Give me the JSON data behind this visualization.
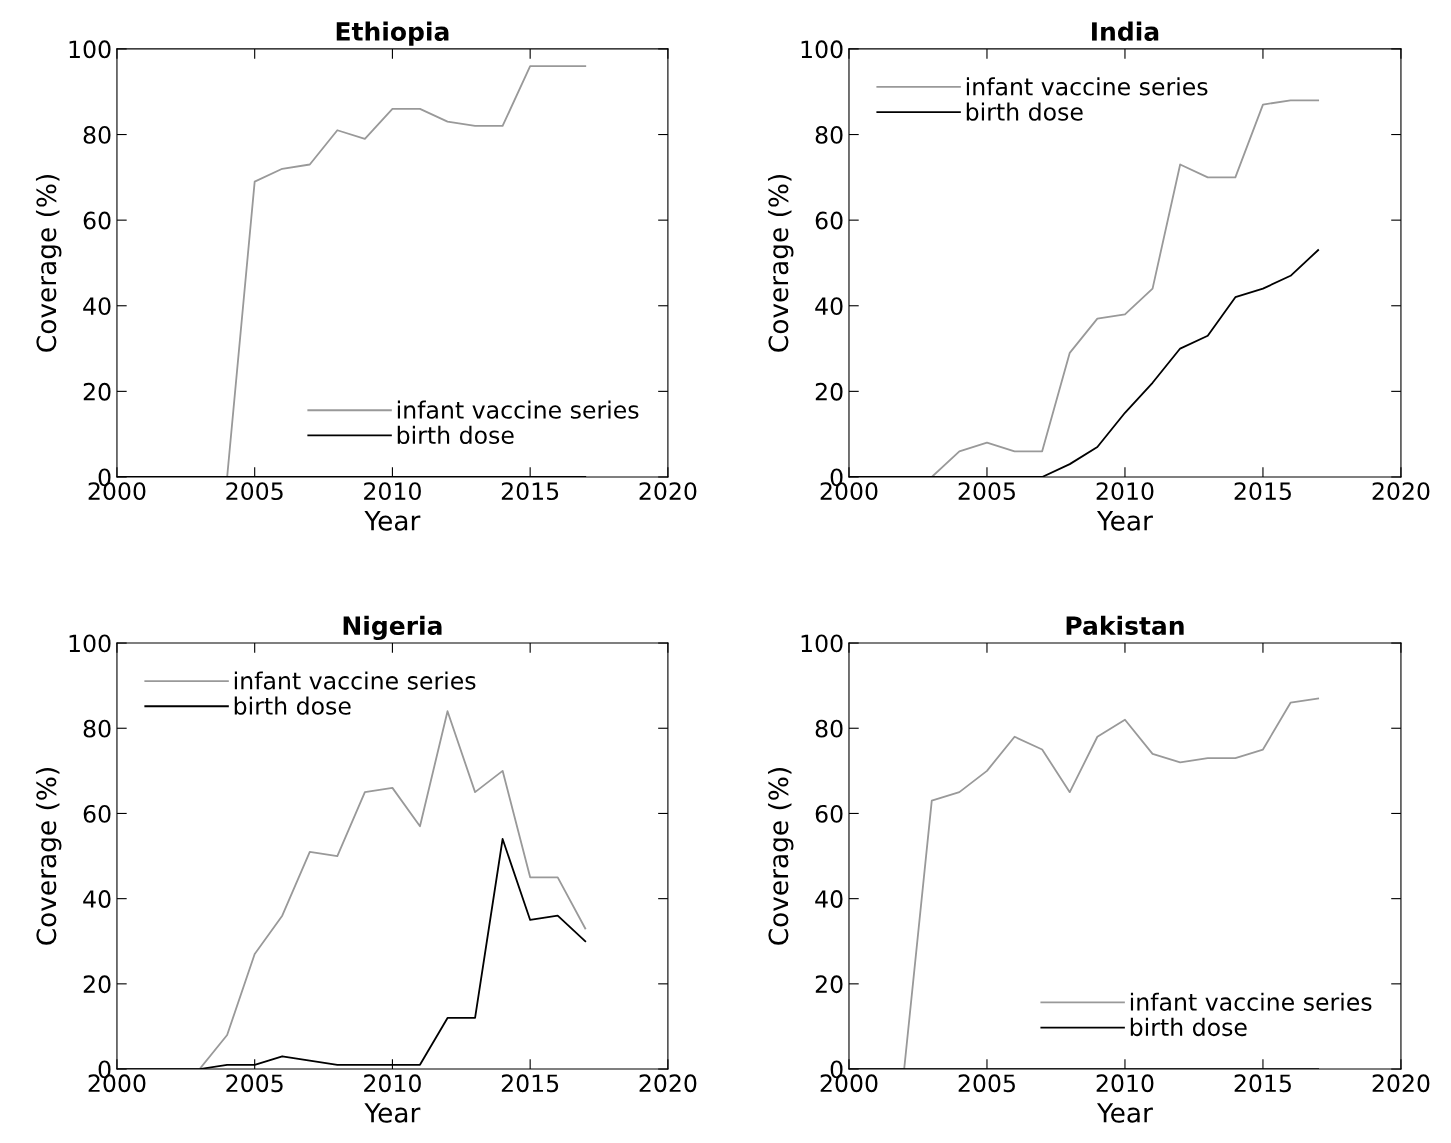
{
  "chart_data": [
    {
      "type": "line",
      "title": "Ethiopia",
      "xlabel": "Year",
      "ylabel": "Coverage (%)",
      "xlim": [
        2000,
        2020
      ],
      "ylim": [
        0,
        100
      ],
      "xticks": [
        2000,
        2005,
        2010,
        2015,
        2020
      ],
      "yticks": [
        0,
        20,
        40,
        60,
        80,
        100
      ],
      "legend": "bottom right",
      "grid": false,
      "x": [
        2000,
        2001,
        2002,
        2003,
        2004,
        2005,
        2006,
        2007,
        2008,
        2009,
        2010,
        2011,
        2012,
        2013,
        2014,
        2015,
        2016,
        2017
      ],
      "series": [
        {
          "name": "infant vaccine series",
          "color": "#999999",
          "values": [
            0,
            0,
            0,
            0,
            0,
            69,
            72,
            73,
            81,
            79,
            86,
            86,
            83,
            82,
            82,
            96,
            96,
            96
          ]
        },
        {
          "name": "birth dose",
          "color": "#000000",
          "values": [
            0,
            0,
            0,
            0,
            0,
            0,
            0,
            0,
            0,
            0,
            0,
            0,
            0,
            0,
            0,
            0,
            0,
            0
          ]
        }
      ]
    },
    {
      "type": "line",
      "title": "India",
      "xlabel": "Year",
      "ylabel": "Coverage (%)",
      "xlim": [
        2000,
        2020
      ],
      "ylim": [
        0,
        100
      ],
      "xticks": [
        2000,
        2005,
        2010,
        2015,
        2020
      ],
      "yticks": [
        0,
        20,
        40,
        60,
        80,
        100
      ],
      "legend": "top left",
      "grid": false,
      "x": [
        2000,
        2001,
        2002,
        2003,
        2004,
        2005,
        2006,
        2007,
        2008,
        2009,
        2010,
        2011,
        2012,
        2013,
        2014,
        2015,
        2016,
        2017
      ],
      "series": [
        {
          "name": "infant vaccine series",
          "color": "#999999",
          "values": [
            0,
            0,
            0,
            0,
            6,
            8,
            6,
            6,
            29,
            37,
            38,
            44,
            73,
            70,
            70,
            87,
            88,
            88
          ]
        },
        {
          "name": "birth dose",
          "color": "#000000",
          "values": [
            0,
            0,
            0,
            0,
            0,
            0,
            0,
            0,
            3,
            7,
            15,
            22,
            30,
            33,
            42,
            44,
            47,
            53
          ]
        }
      ]
    },
    {
      "type": "line",
      "title": "Nigeria",
      "xlabel": "Year",
      "ylabel": "Coverage (%)",
      "xlim": [
        2000,
        2020
      ],
      "ylim": [
        0,
        100
      ],
      "xticks": [
        2000,
        2005,
        2010,
        2015,
        2020
      ],
      "yticks": [
        0,
        20,
        40,
        60,
        80,
        100
      ],
      "legend": "top left",
      "grid": false,
      "x": [
        2000,
        2001,
        2002,
        2003,
        2004,
        2005,
        2006,
        2007,
        2008,
        2009,
        2010,
        2011,
        2012,
        2013,
        2014,
        2015,
        2016,
        2017
      ],
      "series": [
        {
          "name": "infant vaccine series",
          "color": "#999999",
          "values": [
            0,
            0,
            0,
            0,
            8,
            27,
            36,
            51,
            50,
            65,
            66,
            57,
            84,
            65,
            70,
            45,
            45,
            33
          ]
        },
        {
          "name": "birth dose",
          "color": "#000000",
          "values": [
            0,
            0,
            0,
            0,
            1,
            1,
            3,
            2,
            1,
            1,
            1,
            1,
            12,
            12,
            54,
            35,
            36,
            30
          ]
        }
      ]
    },
    {
      "type": "line",
      "title": "Pakistan",
      "xlabel": "Year",
      "ylabel": "Coverage (%)",
      "xlim": [
        2000,
        2020
      ],
      "ylim": [
        0,
        100
      ],
      "xticks": [
        2000,
        2005,
        2010,
        2015,
        2020
      ],
      "yticks": [
        0,
        20,
        40,
        60,
        80,
        100
      ],
      "legend": "bottom right",
      "grid": false,
      "x": [
        2000,
        2001,
        2002,
        2003,
        2004,
        2005,
        2006,
        2007,
        2008,
        2009,
        2010,
        2011,
        2012,
        2013,
        2014,
        2015,
        2016,
        2017
      ],
      "series": [
        {
          "name": "infant vaccine series",
          "color": "#999999",
          "values": [
            0,
            0,
            0,
            63,
            65,
            70,
            78,
            75,
            65,
            78,
            82,
            74,
            72,
            73,
            73,
            75,
            86,
            87
          ]
        },
        {
          "name": "birth dose",
          "color": "#000000",
          "values": [
            0,
            0,
            0,
            0,
            0,
            0,
            0,
            0,
            0,
            0,
            0,
            0,
            0,
            0,
            0,
            0,
            0,
            0
          ]
        }
      ]
    }
  ]
}
